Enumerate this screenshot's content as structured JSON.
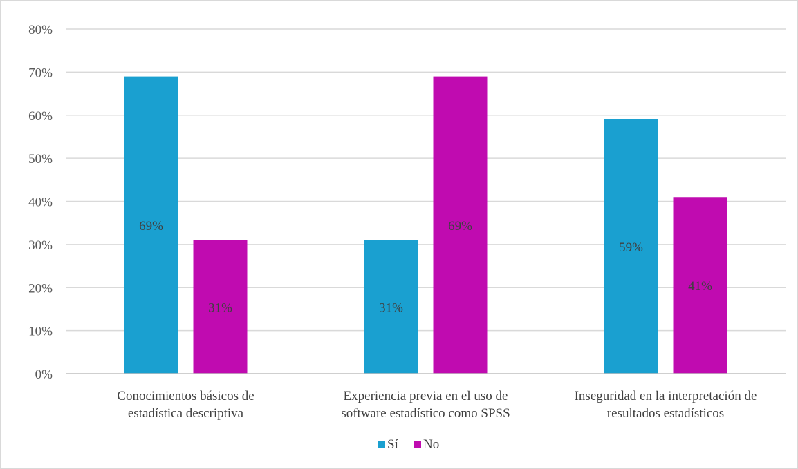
{
  "chart_data": {
    "type": "bar",
    "categories": [
      [
        "Conocimientos básicos de",
        "estadística descriptiva"
      ],
      [
        "Experiencia previa en el uso de",
        "software estadístico como SPSS"
      ],
      [
        "Inseguridad en la interpretación de",
        "resultados estadísticos"
      ]
    ],
    "series": [
      {
        "name": "Sí",
        "color": "#1aa0d0",
        "values": [
          69,
          31,
          59
        ],
        "labels": [
          "69%",
          "31%",
          "59%"
        ]
      },
      {
        "name": "No",
        "color": "#c00bb0",
        "values": [
          31,
          69,
          41
        ],
        "labels": [
          "31%",
          "69%",
          "41%"
        ]
      }
    ],
    "ylim": [
      0,
      80
    ],
    "yticks": [
      "0%",
      "10%",
      "20%",
      "30%",
      "40%",
      "50%",
      "60%",
      "70%",
      "80%"
    ],
    "grid": true,
    "legend_position": "bottom"
  }
}
